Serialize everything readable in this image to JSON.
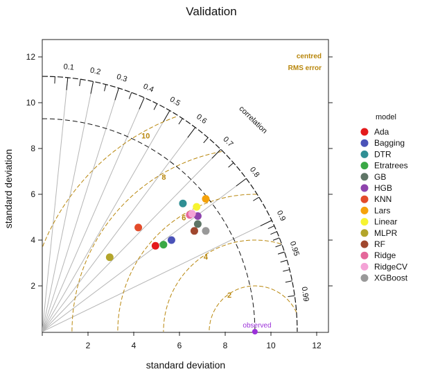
{
  "chart_data": {
    "type": "scatter",
    "subtype": "taylor-diagram",
    "title": "Validation",
    "xlabel": "standard deviation",
    "ylabel": "standard deviation",
    "xlim": [
      0,
      12.5
    ],
    "ylim": [
      0,
      12.5
    ],
    "x_ticks": [
      2,
      4,
      6,
      8,
      10,
      12
    ],
    "y_ticks": [
      2,
      4,
      6,
      8,
      10,
      12
    ],
    "correlation_label": "correlation",
    "correlation_ticks": [
      0.1,
      0.2,
      0.3,
      0.4,
      0.5,
      0.6,
      0.7,
      0.8,
      0.9,
      0.95,
      0.99
    ],
    "sd_arcs": [
      9.3,
      11.15
    ],
    "rms_legend": [
      "centred",
      "RMS error"
    ],
    "rms_contours": [
      2,
      4,
      6,
      8,
      10
    ],
    "observed": {
      "label": "observed",
      "sd": 9.3,
      "color": "#9b30d9"
    },
    "legend_title": "model",
    "legend_position": "right",
    "series": [
      {
        "name": "Ada",
        "color": "#e41a1c",
        "x": 4.95,
        "y": 3.75
      },
      {
        "name": "Bagging",
        "color": "#4a52b8",
        "x": 5.65,
        "y": 4.0
      },
      {
        "name": "DTR",
        "color": "#2f8f94",
        "x": 6.15,
        "y": 5.6
      },
      {
        "name": "Etratrees",
        "color": "#3aa845",
        "x": 5.3,
        "y": 3.8
      },
      {
        "name": "GB",
        "color": "#5f7566",
        "x": 6.8,
        "y": 4.7
      },
      {
        "name": "HGB",
        "color": "#8e44ad",
        "x": 6.8,
        "y": 5.05
      },
      {
        "name": "KNN",
        "color": "#e34b2a",
        "x": 4.2,
        "y": 4.55
      },
      {
        "name": "Lars",
        "color": "#f5a20a",
        "x": 7.15,
        "y": 5.8
      },
      {
        "name": "Linear",
        "color": "#f7f430",
        "x": 6.75,
        "y": 5.45
      },
      {
        "name": "MLPR",
        "color": "#b3a52b",
        "x": 2.95,
        "y": 3.25
      },
      {
        "name": "RF",
        "color": "#a0472e",
        "x": 6.65,
        "y": 4.4
      },
      {
        "name": "Ridge",
        "color": "#e4679a",
        "x": 6.45,
        "y": 5.1
      },
      {
        "name": "RidgeCV",
        "color": "#f4a3d6",
        "x": 6.55,
        "y": 5.15
      },
      {
        "name": "XGBoost",
        "color": "#999999",
        "x": 7.15,
        "y": 4.4
      }
    ]
  }
}
